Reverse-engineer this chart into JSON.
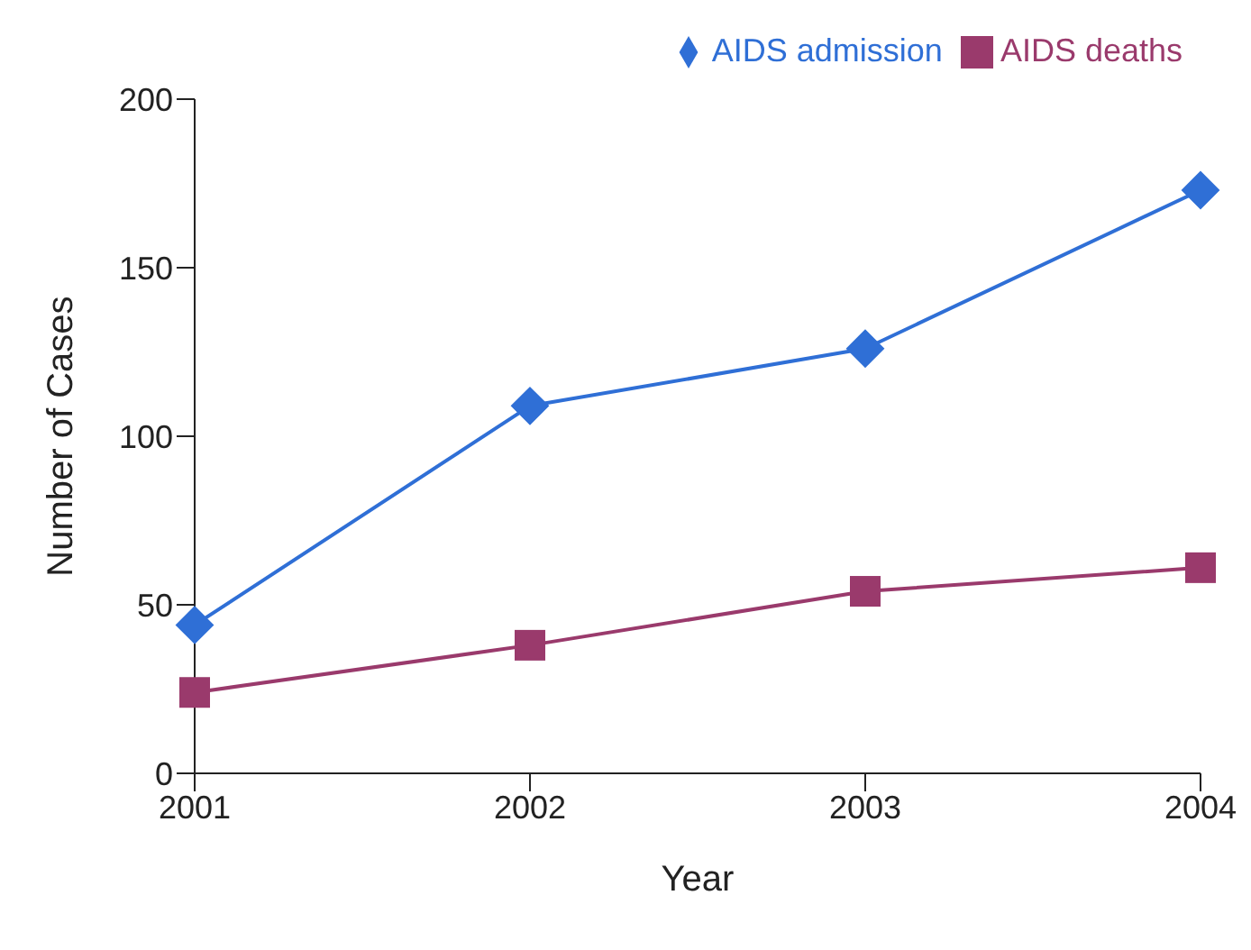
{
  "chart_data": {
    "type": "line",
    "xlabel": "Year",
    "ylabel": "Number of Cases",
    "categories": [
      "2001",
      "2002",
      "2003",
      "2004"
    ],
    "series": [
      {
        "name": "AIDS admission",
        "color": "#2f6fd6",
        "marker": "diamond",
        "values": [
          44,
          109,
          126,
          173
        ]
      },
      {
        "name": "AIDS deaths",
        "color": "#9a3a6c",
        "marker": "square",
        "values": [
          24,
          38,
          54,
          61
        ]
      }
    ],
    "ylim": [
      0,
      200
    ],
    "yticks": [
      0,
      50,
      100,
      150,
      200
    ],
    "grid": false,
    "legend": "top"
  }
}
